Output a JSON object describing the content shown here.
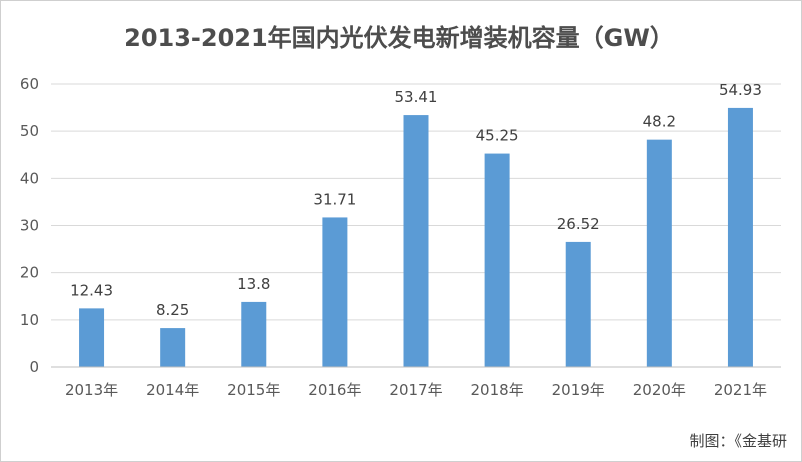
{
  "chart_data": {
    "type": "bar",
    "title": "2013-2021年国内光伏发电新增装机容量（GW）",
    "categories": [
      "2013年",
      "2014年",
      "2015年",
      "2016年",
      "2017年",
      "2018年",
      "2019年",
      "2020年",
      "2021年"
    ],
    "values": [
      12.43,
      8.25,
      13.8,
      31.71,
      53.41,
      45.25,
      26.52,
      48.2,
      54.93
    ],
    "value_labels": [
      "12.43",
      "8.25",
      "13.8",
      "31.71",
      "53.41",
      "45.25",
      "26.52",
      "48.2",
      "54.93"
    ],
    "ylim": [
      0,
      60
    ],
    "yticks": [
      0,
      10,
      20,
      30,
      40,
      50,
      60
    ],
    "grid": true,
    "bar_color": "#5b9bd5"
  },
  "source": "制图：《金基研"
}
